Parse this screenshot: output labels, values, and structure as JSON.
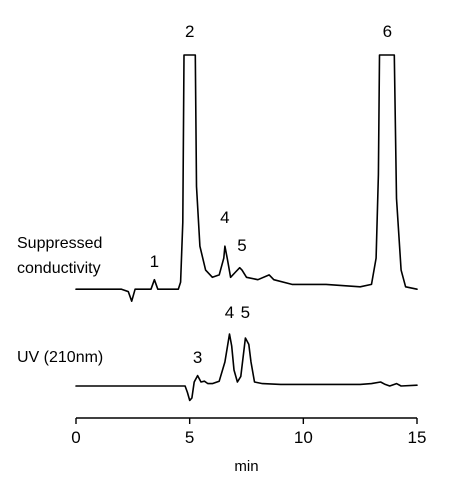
{
  "chart_data": {
    "type": "line",
    "title": "",
    "xlabel": "min",
    "ylabel": "",
    "xlim": [
      0,
      15
    ],
    "xticks": [
      0,
      5,
      10,
      15
    ],
    "grid": false,
    "legend": "none",
    "stroke_color": "#000000",
    "series": [
      {
        "name": "Suppressed conductivity",
        "label_lines": [
          "Suppressed",
          "conductivity"
        ],
        "note": "peaks 2 and 6 clipped at top (flat-topped)",
        "points": [
          [
            0.0,
            0.02
          ],
          [
            2.0,
            0.02
          ],
          [
            2.3,
            0.01
          ],
          [
            2.45,
            -0.03
          ],
          [
            2.6,
            0.02
          ],
          [
            3.3,
            0.02
          ],
          [
            3.45,
            0.06
          ],
          [
            3.6,
            0.02
          ],
          [
            4.5,
            0.02
          ],
          [
            4.6,
            0.05
          ],
          [
            4.7,
            0.3
          ],
          [
            4.75,
            1.0
          ],
          [
            5.25,
            1.0
          ],
          [
            5.3,
            0.45
          ],
          [
            5.45,
            0.2
          ],
          [
            5.7,
            0.1
          ],
          [
            6.0,
            0.07
          ],
          [
            6.3,
            0.08
          ],
          [
            6.5,
            0.15
          ],
          [
            6.55,
            0.2
          ],
          [
            6.65,
            0.15
          ],
          [
            6.8,
            0.07
          ],
          [
            7.0,
            0.09
          ],
          [
            7.2,
            0.11
          ],
          [
            7.3,
            0.1
          ],
          [
            7.5,
            0.07
          ],
          [
            8.0,
            0.06
          ],
          [
            8.5,
            0.08
          ],
          [
            8.7,
            0.06
          ],
          [
            9.5,
            0.04
          ],
          [
            11.0,
            0.04
          ],
          [
            12.5,
            0.03
          ],
          [
            13.0,
            0.04
          ],
          [
            13.2,
            0.15
          ],
          [
            13.3,
            0.5
          ],
          [
            13.35,
            1.0
          ],
          [
            14.0,
            1.0
          ],
          [
            14.1,
            0.4
          ],
          [
            14.3,
            0.1
          ],
          [
            14.5,
            0.03
          ],
          [
            15.0,
            0.02
          ]
        ],
        "peaks": [
          {
            "label": "1",
            "x": 3.45
          },
          {
            "label": "2",
            "x": 5.0
          },
          {
            "label": "4",
            "x": 6.55
          },
          {
            "label": "5",
            "x": 7.3
          },
          {
            "label": "6",
            "x": 13.7
          }
        ]
      },
      {
        "name": "UV (210nm)",
        "label_lines": [
          "UV (210nm)"
        ],
        "points": [
          [
            0.0,
            0.0
          ],
          [
            4.8,
            0.0
          ],
          [
            4.9,
            -0.08
          ],
          [
            5.0,
            -0.18
          ],
          [
            5.1,
            -0.15
          ],
          [
            5.2,
            0.05
          ],
          [
            5.35,
            0.13
          ],
          [
            5.5,
            0.05
          ],
          [
            5.65,
            0.06
          ],
          [
            5.8,
            0.03
          ],
          [
            6.0,
            0.03
          ],
          [
            6.3,
            0.06
          ],
          [
            6.55,
            0.3
          ],
          [
            6.75,
            0.65
          ],
          [
            6.85,
            0.5
          ],
          [
            6.95,
            0.2
          ],
          [
            7.1,
            0.05
          ],
          [
            7.25,
            0.12
          ],
          [
            7.45,
            0.6
          ],
          [
            7.6,
            0.52
          ],
          [
            7.7,
            0.3
          ],
          [
            7.85,
            0.05
          ],
          [
            8.2,
            0.03
          ],
          [
            9.0,
            0.02
          ],
          [
            10.5,
            0.02
          ],
          [
            12.5,
            0.02
          ],
          [
            13.0,
            0.03
          ],
          [
            13.4,
            0.05
          ],
          [
            13.6,
            0.02
          ],
          [
            13.8,
            0.0
          ],
          [
            14.1,
            0.03
          ],
          [
            14.3,
            0.0
          ],
          [
            15.0,
            0.01
          ]
        ],
        "peaks": [
          {
            "label": "3",
            "x": 5.35
          },
          {
            "label": "4",
            "x": 6.75
          },
          {
            "label": "5",
            "x": 7.45
          }
        ]
      }
    ]
  }
}
